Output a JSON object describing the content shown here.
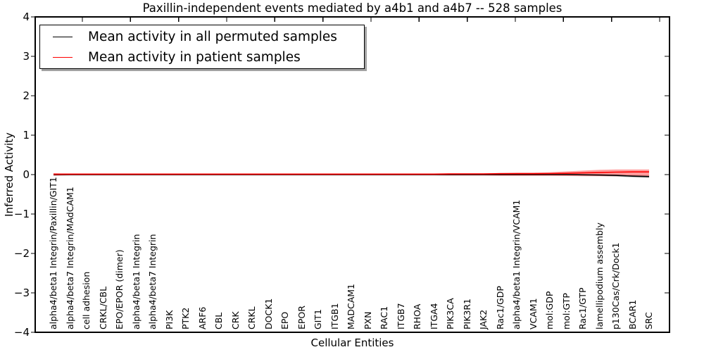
{
  "chart_data": {
    "type": "line",
    "title": "Paxillin-independent events mediated by a4b1 and a4b7 -- 528 samples",
    "xlabel": "Cellular Entities",
    "ylabel": "Inferred Activity",
    "ylim": [
      -4,
      4
    ],
    "ytick_labels": [
      "4",
      "3",
      "2",
      "1",
      "0",
      "−1",
      "−2",
      "−3",
      "−4"
    ],
    "grid": false,
    "legend_position": "upper left",
    "categories": [
      "alpha4/beta1 Integrin/Paxillin/GIT1",
      "alpha4/beta7 Integrin/MAdCAM1",
      "cell adhesion",
      "CRKL/CBL",
      "EPO/EPOR (dimer)",
      "alpha4/beta1 Integrin",
      "alpha4/beta7 Integrin",
      "PI3K",
      "PTK2",
      "ARF6",
      "CBL",
      "CRK",
      "CRKL",
      "DOCK1",
      "EPO",
      "EPOR",
      "GIT1",
      "ITGB1",
      "MADCAM1",
      "PXN",
      "RAC1",
      "ITGB7",
      "RHOA",
      "ITGA4",
      "PIK3CA",
      "PIK3R1",
      "JAK2",
      "Rac1/GDP",
      "alpha4/beta1 Integrin/VCAM1",
      "VCAM1",
      "mol:GDP",
      "mol:GTP",
      "Rac1/GTP",
      "lamellipodium assembly",
      "p130Cas/Crk/Dock1",
      "BCAR1",
      "SRC"
    ],
    "series": [
      {
        "name": "Mean activity in all permuted samples",
        "color": "#000000",
        "band_color": "rgba(110,110,110,0.45)",
        "values": [
          0,
          0,
          0,
          0,
          0,
          0,
          0,
          0,
          0,
          0,
          0,
          0,
          0,
          0,
          0,
          0,
          0,
          0,
          0,
          0,
          0,
          0,
          0,
          0,
          0,
          0,
          0,
          0,
          0,
          0,
          0,
          0,
          -0.005,
          -0.01,
          -0.02,
          -0.04,
          -0.05
        ],
        "band_upper": [
          0.015,
          0.015,
          0.015,
          0.015,
          0.015,
          0.015,
          0.015,
          0.015,
          0.015,
          0.015,
          0.015,
          0.015,
          0.015,
          0.015,
          0.015,
          0.015,
          0.015,
          0.015,
          0.015,
          0.015,
          0.015,
          0.015,
          0.015,
          0.015,
          0.015,
          0.015,
          0.015,
          0.015,
          0.015,
          0.015,
          0.015,
          0.015,
          0.01,
          0.005,
          0,
          -0.01,
          -0.02
        ],
        "band_lower": [
          -0.015,
          -0.015,
          -0.015,
          -0.015,
          -0.015,
          -0.015,
          -0.015,
          -0.015,
          -0.015,
          -0.015,
          -0.015,
          -0.015,
          -0.015,
          -0.015,
          -0.015,
          -0.015,
          -0.015,
          -0.015,
          -0.015,
          -0.015,
          -0.015,
          -0.015,
          -0.015,
          -0.015,
          -0.015,
          -0.015,
          -0.015,
          -0.015,
          -0.015,
          -0.015,
          -0.015,
          -0.015,
          -0.02,
          -0.035,
          -0.05,
          -0.07,
          -0.08
        ]
      },
      {
        "name": "Mean activity in patient samples",
        "color": "#ff0000",
        "band_color": "rgba(255,0,0,0.38)",
        "values": [
          0,
          0,
          0,
          0,
          0,
          0,
          0,
          0,
          0,
          0,
          0,
          0,
          0,
          0,
          0,
          0,
          0,
          0,
          0,
          0,
          0,
          0,
          0,
          0,
          0.005,
          0.005,
          0.005,
          0.01,
          0.01,
          0.01,
          0.015,
          0.02,
          0.03,
          0.04,
          0.05,
          0.055,
          0.055
        ],
        "band_upper": [
          0.03,
          0.02,
          0.02,
          0.02,
          0.02,
          0.02,
          0.02,
          0.02,
          0.02,
          0.02,
          0.02,
          0.02,
          0.02,
          0.02,
          0.02,
          0.02,
          0.02,
          0.02,
          0.02,
          0.02,
          0.02,
          0.02,
          0.02,
          0.02,
          0.03,
          0.03,
          0.03,
          0.04,
          0.05,
          0.05,
          0.06,
          0.08,
          0.1,
          0.12,
          0.13,
          0.13,
          0.13
        ],
        "band_lower": [
          -0.03,
          -0.02,
          -0.02,
          -0.02,
          -0.02,
          -0.02,
          -0.02,
          -0.02,
          -0.02,
          -0.02,
          -0.02,
          -0.02,
          -0.02,
          -0.02,
          -0.02,
          -0.02,
          -0.02,
          -0.02,
          -0.02,
          -0.02,
          -0.02,
          -0.02,
          -0.02,
          -0.02,
          -0.025,
          -0.025,
          -0.025,
          -0.03,
          -0.03,
          -0.03,
          -0.03,
          -0.035,
          -0.04,
          -0.04,
          -0.04,
          -0.04,
          -0.04
        ]
      }
    ]
  },
  "legend": {
    "items": [
      {
        "label": "Mean activity in all permuted samples",
        "color": "#000000"
      },
      {
        "label": "Mean activity in patient samples",
        "color": "#ff0000"
      }
    ]
  }
}
